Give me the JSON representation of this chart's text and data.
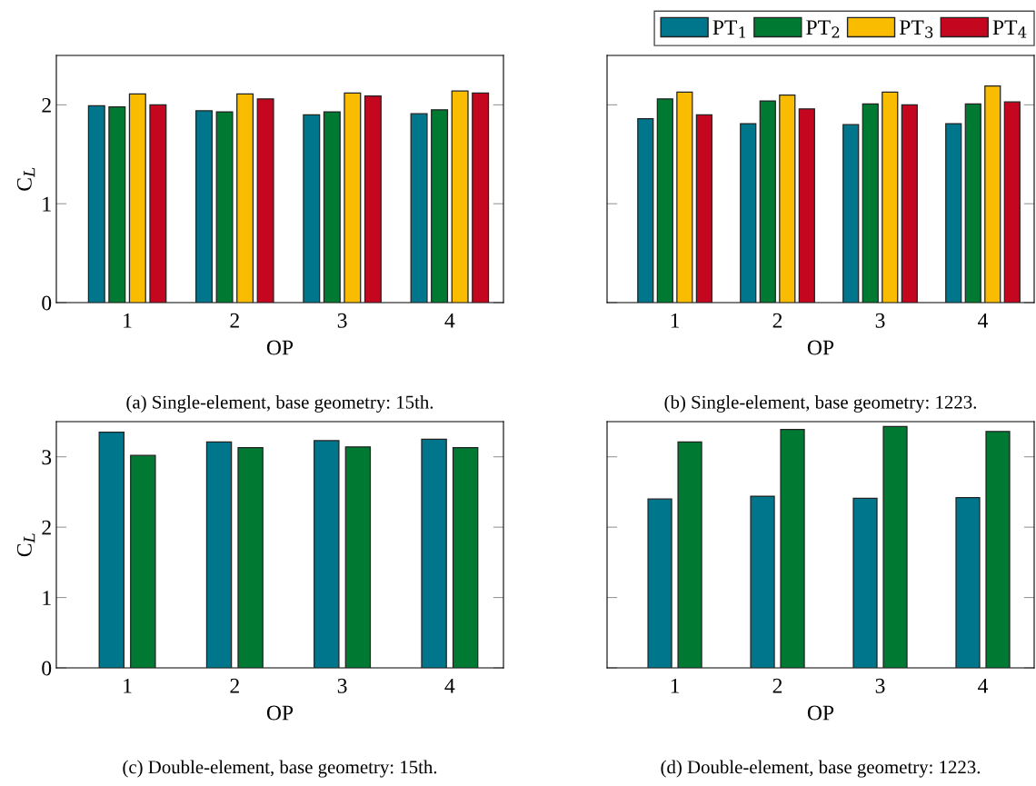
{
  "chart_data": [
    {
      "type": "bar",
      "title": "(a) Single-element, base geometry: 15th.",
      "xlabel": "OP",
      "ylabel": "C$_{L}$",
      "categories": [
        "1",
        "2",
        "3",
        "4"
      ],
      "ylim": [
        0,
        2.5
      ],
      "yticks": [
        0,
        1,
        2
      ],
      "grid": false,
      "legend": false,
      "series": [
        {
          "color": "#00768c",
          "values": [
            1.99,
            1.94,
            1.9,
            1.91
          ]
        },
        {
          "color": "#007a33",
          "values": [
            1.98,
            1.93,
            1.93,
            1.95
          ]
        },
        {
          "color": "#f9bc00",
          "values": [
            2.11,
            2.11,
            2.12,
            2.14
          ]
        },
        {
          "color": "#c4071e",
          "values": [
            2.0,
            2.06,
            2.09,
            2.12
          ]
        }
      ]
    },
    {
      "type": "bar",
      "title": "(b) Single-element, base geometry: 1223.",
      "xlabel": "OP",
      "categories": [
        "1",
        "2",
        "3",
        "4"
      ],
      "ylim": [
        0,
        2.5
      ],
      "yticks": [
        0,
        1,
        2
      ],
      "tick_labels": "x",
      "grid": false,
      "legend": "top right",
      "series": [
        {
          "name": "PT$_{1}$",
          "color": "#00768c",
          "values": [
            1.86,
            1.81,
            1.8,
            1.81
          ]
        },
        {
          "name": "PT$_{2}$",
          "color": "#007a33",
          "values": [
            2.06,
            2.04,
            2.01,
            2.01
          ]
        },
        {
          "name": "PT$_{3}$",
          "color": "#f9bc00",
          "values": [
            2.13,
            2.1,
            2.13,
            2.19
          ]
        },
        {
          "name": "PT$_{4}$",
          "color": "#c4071e",
          "values": [
            1.9,
            1.96,
            2.0,
            2.03
          ]
        }
      ]
    },
    {
      "type": "bar",
      "title": "(c) Double-element, base geometry: 15th.",
      "xlabel": "OP",
      "ylabel": "C$_{L}$",
      "categories": [
        "1",
        "2",
        "3",
        "4"
      ],
      "ylim": [
        0,
        3.5
      ],
      "yticks": [
        0,
        1,
        2,
        3
      ],
      "grid": false,
      "legend": false,
      "series": [
        {
          "color": "#00768c",
          "values": [
            3.35,
            3.21,
            3.23,
            3.25
          ]
        },
        {
          "color": "#007a33",
          "values": [
            3.02,
            3.13,
            3.14,
            3.13
          ]
        }
      ]
    },
    {
      "type": "bar",
      "title": "(d) Double-element, base geometry: 1223.",
      "xlabel": "OP",
      "categories": [
        "1",
        "2",
        "3",
        "4"
      ],
      "ylim": [
        0,
        3.5
      ],
      "yticks": [
        0,
        1,
        2,
        3
      ],
      "tick_labels": "x",
      "grid": false,
      "legend": false,
      "series": [
        {
          "color": "#00768c",
          "values": [
            2.4,
            2.44,
            2.41,
            2.42
          ]
        },
        {
          "color": "#007a33",
          "values": [
            3.21,
            3.39,
            3.43,
            3.36
          ]
        }
      ]
    }
  ]
}
